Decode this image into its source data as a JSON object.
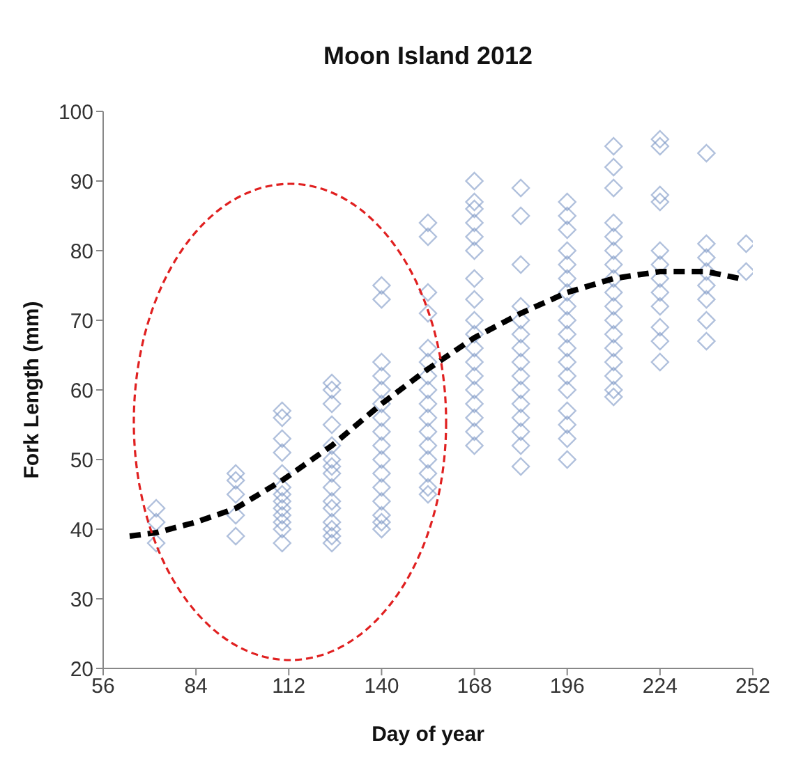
{
  "chart_data": {
    "type": "scatter",
    "title": "Moon Island 2012",
    "xlabel": "Day of year",
    "ylabel": "Fork Length (mm)",
    "xlim": [
      56,
      252
    ],
    "xticks": [
      56,
      84,
      112,
      140,
      168,
      196,
      224,
      252
    ],
    "ylim": [
      20,
      100
    ],
    "yticks": [
      20,
      30,
      40,
      50,
      60,
      70,
      80,
      90,
      100
    ],
    "grid": false,
    "marker": "diamond",
    "series": [
      {
        "color": "#7b96c4",
        "x": [
          72,
          72,
          72,
          96,
          96,
          96,
          96,
          96,
          110,
          110,
          110,
          110,
          110,
          110,
          110,
          110,
          110,
          110,
          110,
          110,
          110,
          125,
          125,
          125,
          125,
          125,
          125,
          125,
          125,
          125,
          125,
          125,
          125,
          125,
          125,
          125,
          140,
          140,
          140,
          140,
          140,
          140,
          140,
          140,
          140,
          140,
          140,
          140,
          140,
          140,
          140,
          140,
          154,
          154,
          154,
          154,
          154,
          154,
          154,
          154,
          154,
          154,
          154,
          154,
          154,
          154,
          154,
          154,
          168,
          168,
          168,
          168,
          168,
          168,
          168,
          168,
          168,
          168,
          168,
          168,
          168,
          168,
          168,
          168,
          168,
          168,
          182,
          182,
          182,
          182,
          182,
          182,
          182,
          182,
          182,
          182,
          182,
          182,
          182,
          182,
          182,
          196,
          196,
          196,
          196,
          196,
          196,
          196,
          196,
          196,
          196,
          196,
          196,
          196,
          196,
          196,
          196,
          196,
          196,
          210,
          210,
          210,
          210,
          210,
          210,
          210,
          210,
          210,
          210,
          210,
          210,
          210,
          210,
          210,
          210,
          210,
          224,
          224,
          224,
          224,
          224,
          224,
          224,
          224,
          224,
          224,
          224,
          224,
          238,
          238,
          238,
          238,
          238,
          238,
          238,
          238,
          250,
          250
        ],
        "values": [
          43,
          41,
          38,
          48,
          47,
          45,
          42,
          39,
          57,
          56,
          53,
          51,
          48,
          46,
          45,
          44,
          43,
          42,
          41,
          40,
          38,
          61,
          60,
          58,
          55,
          52,
          50,
          49,
          48,
          46,
          44,
          43,
          41,
          40,
          39,
          38,
          75,
          73,
          64,
          62,
          60,
          58,
          56,
          54,
          52,
          50,
          48,
          46,
          44,
          42,
          41,
          40,
          84,
          82,
          74,
          71,
          66,
          64,
          62,
          60,
          58,
          56,
          54,
          52,
          50,
          48,
          46,
          45,
          90,
          87,
          86,
          84,
          82,
          80,
          76,
          73,
          70,
          68,
          66,
          64,
          62,
          60,
          58,
          56,
          54,
          52,
          89,
          85,
          78,
          72,
          70,
          68,
          66,
          64,
          62,
          60,
          58,
          56,
          54,
          52,
          49,
          87,
          85,
          83,
          80,
          78,
          76,
          74,
          72,
          70,
          68,
          66,
          64,
          62,
          60,
          57,
          55,
          53,
          50,
          95,
          92,
          89,
          84,
          82,
          80,
          78,
          76,
          74,
          72,
          70,
          68,
          66,
          64,
          62,
          60,
          59,
          96,
          95,
          88,
          87,
          80,
          78,
          76,
          74,
          72,
          69,
          67,
          64,
          94,
          81,
          79,
          77,
          75,
          73,
          70,
          67,
          81,
          77
        ]
      },
      {
        "type": "line",
        "color": "#000000",
        "line_style": "dashed",
        "marker": "none",
        "x": [
          64,
          72,
          84,
          96,
          110,
          125,
          140,
          154,
          168,
          182,
          196,
          210,
          224,
          238,
          248
        ],
        "values": [
          39,
          39.5,
          41,
          43,
          47,
          52,
          58,
          63,
          67.5,
          71,
          74,
          76,
          77,
          77,
          76
        ]
      }
    ]
  }
}
